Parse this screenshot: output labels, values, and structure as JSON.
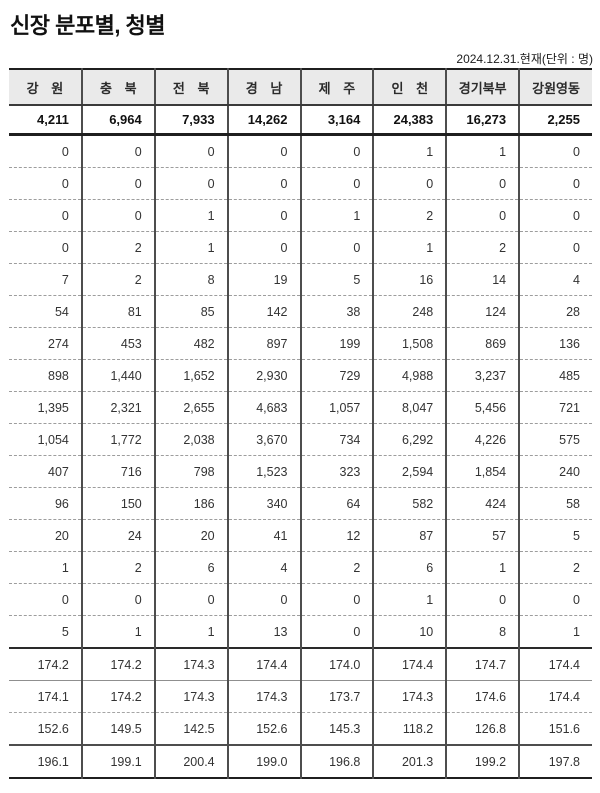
{
  "page": {
    "title": "신장 분포별, 청별",
    "date_note": "2024.12.31.현재(단위 : 명)"
  },
  "table": {
    "columns": [
      "강 원",
      "충 북",
      "전 북",
      "경 남",
      "제 주",
      "인 천",
      "경기북부",
      "강원영동"
    ],
    "totals": [
      "4,211",
      "6,964",
      "7,933",
      "14,262",
      "3,164",
      "24,383",
      "16,273",
      "2,255"
    ],
    "rows": [
      [
        "0",
        "0",
        "0",
        "0",
        "0",
        "1",
        "1",
        "0"
      ],
      [
        "0",
        "0",
        "0",
        "0",
        "0",
        "0",
        "0",
        "0"
      ],
      [
        "0",
        "0",
        "1",
        "0",
        "1",
        "2",
        "0",
        "0"
      ],
      [
        "0",
        "2",
        "1",
        "0",
        "0",
        "1",
        "2",
        "0"
      ],
      [
        "7",
        "2",
        "8",
        "19",
        "5",
        "16",
        "14",
        "4"
      ],
      [
        "54",
        "81",
        "85",
        "142",
        "38",
        "248",
        "124",
        "28"
      ],
      [
        "274",
        "453",
        "482",
        "897",
        "199",
        "1,508",
        "869",
        "136"
      ],
      [
        "898",
        "1,440",
        "1,652",
        "2,930",
        "729",
        "4,988",
        "3,237",
        "485"
      ],
      [
        "1,395",
        "2,321",
        "2,655",
        "4,683",
        "1,057",
        "8,047",
        "5,456",
        "721"
      ],
      [
        "1,054",
        "1,772",
        "2,038",
        "3,670",
        "734",
        "6,292",
        "4,226",
        "575"
      ],
      [
        "407",
        "716",
        "798",
        "1,523",
        "323",
        "2,594",
        "1,854",
        "240"
      ],
      [
        "96",
        "150",
        "186",
        "340",
        "64",
        "582",
        "424",
        "58"
      ],
      [
        "20",
        "24",
        "20",
        "41",
        "12",
        "87",
        "57",
        "5"
      ],
      [
        "1",
        "2",
        "6",
        "4",
        "2",
        "6",
        "1",
        "2"
      ],
      [
        "0",
        "0",
        "0",
        "0",
        "0",
        "1",
        "0",
        "0"
      ],
      [
        "5",
        "1",
        "1",
        "13",
        "0",
        "10",
        "8",
        "1"
      ]
    ],
    "stats_rows": [
      [
        "174.2",
        "174.2",
        "174.3",
        "174.4",
        "174.0",
        "174.4",
        "174.7",
        "174.4"
      ],
      [
        "174.1",
        "174.2",
        "174.3",
        "174.3",
        "173.7",
        "174.3",
        "174.6",
        "174.4"
      ],
      [
        "152.6",
        "149.5",
        "142.5",
        "152.6",
        "145.3",
        "118.2",
        "126.8",
        "151.6"
      ],
      [
        "196.1",
        "199.1",
        "200.4",
        "199.0",
        "196.8",
        "201.3",
        "199.2",
        "197.8"
      ]
    ]
  },
  "colors": {
    "header_bg": "#eaeaea",
    "border_dark": "#1f1f1f",
    "border_vertical": "#4d4d4d",
    "row_separator": "#9d9d9d",
    "text": "#333333"
  }
}
